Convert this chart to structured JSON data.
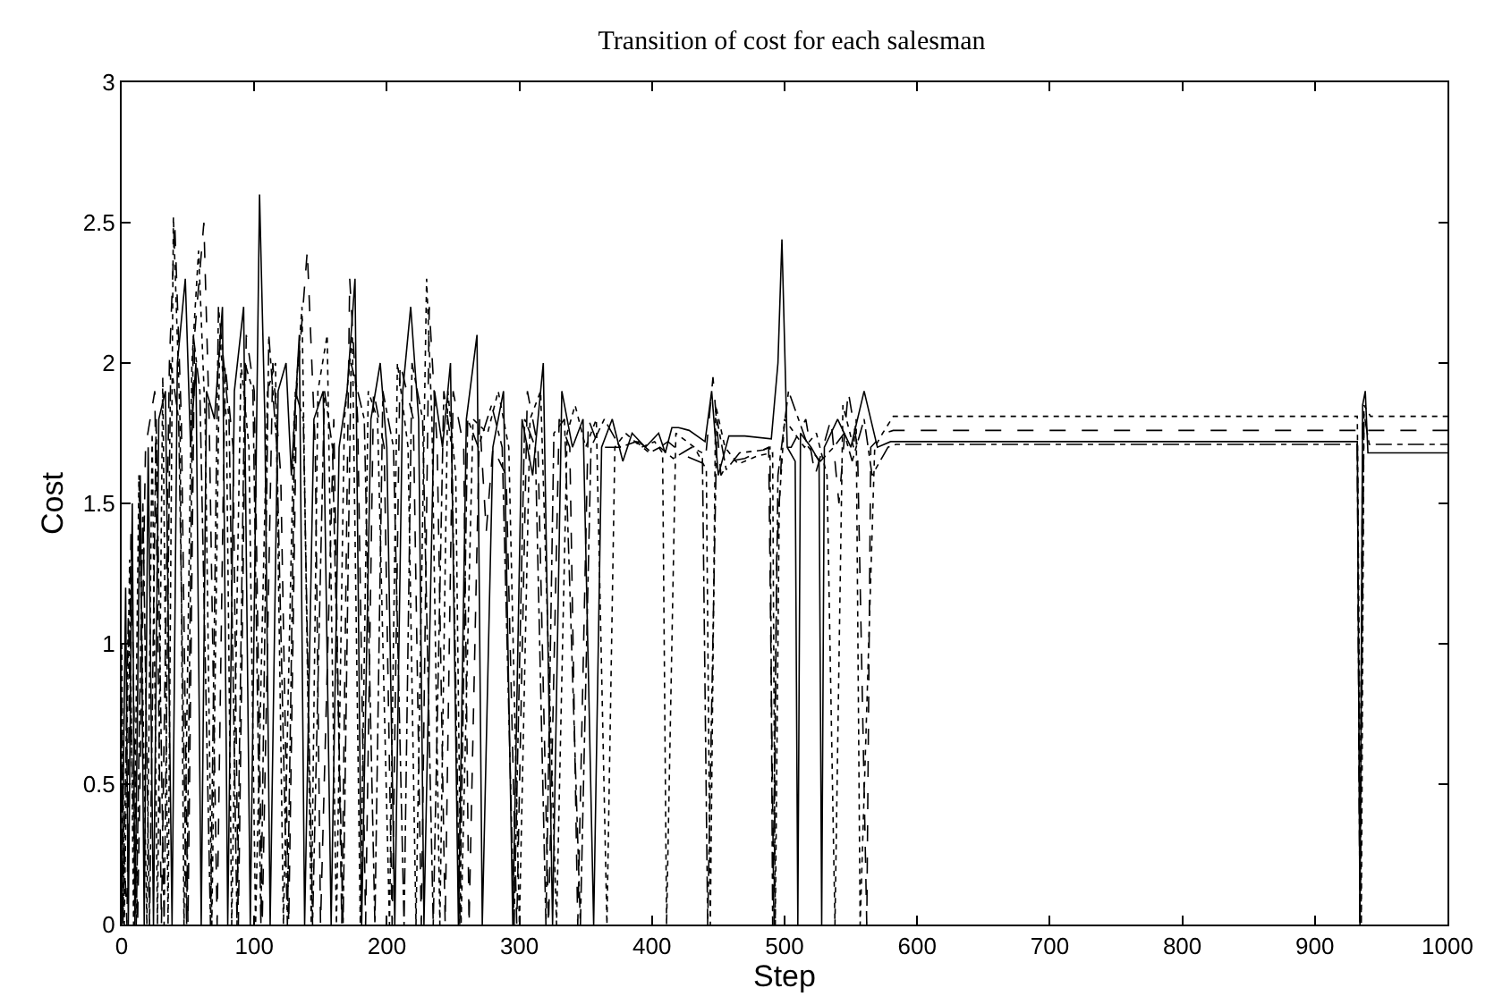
{
  "chart_data": {
    "type": "line",
    "title": "Transition of cost for each salesman",
    "xlabel": "Step",
    "ylabel": "Cost",
    "xlim": [
      0,
      1000
    ],
    "xticks": [
      0,
      100,
      200,
      300,
      400,
      500,
      600,
      700,
      800,
      900,
      1000
    ],
    "ylim": [
      0,
      3
    ],
    "yticks": [
      0,
      0.5,
      1,
      1.5,
      2,
      2.5,
      3
    ],
    "marker": "none",
    "series": [
      {
        "color": "#000000",
        "line_style": "solid",
        "x": [
          0,
          3,
          5,
          8,
          10,
          14,
          17,
          20,
          24,
          28,
          33,
          38,
          42,
          48,
          52,
          56,
          60,
          64,
          70,
          76,
          80,
          85,
          92,
          97,
          104,
          108,
          112,
          118,
          124,
          128,
          134,
          138,
          145,
          152,
          158,
          164,
          170,
          176,
          181,
          188,
          195,
          200,
          206,
          212,
          218,
          224,
          228,
          236,
          242,
          248,
          254,
          260,
          268,
          272,
          280,
          288,
          295,
          302,
          310,
          318,
          325,
          332,
          340,
          348,
          356,
          362,
          370,
          378,
          385,
          395,
          405,
          410,
          415,
          420,
          428,
          440,
          445,
          450,
          458,
          470,
          490,
          495,
          498,
          502,
          508,
          510,
          512,
          520,
          526,
          528,
          530,
          540,
          550,
          560,
          570,
          580,
          932,
          934,
          936,
          938,
          940,
          1000
        ],
        "values": [
          0,
          1.2,
          0,
          1.5,
          0,
          1.6,
          0,
          1.7,
          0,
          1.8,
          1.9,
          0,
          2.0,
          2.3,
          1.7,
          2.0,
          0,
          1.9,
          1.8,
          2.2,
          0,
          1.9,
          2.2,
          0,
          2.6,
          1.8,
          0,
          1.9,
          2.0,
          1.6,
          2.1,
          0,
          1.8,
          1.9,
          0,
          1.7,
          1.9,
          2.3,
          0,
          1.8,
          2.0,
          1.7,
          0,
          1.9,
          2.2,
          1.8,
          0,
          1.9,
          1.7,
          2.0,
          0,
          1.8,
          2.1,
          0,
          1.7,
          1.9,
          0,
          1.8,
          1.6,
          2.0,
          0,
          1.9,
          1.7,
          1.8,
          0,
          1.7,
          1.8,
          1.65,
          1.75,
          1.7,
          1.75,
          1.68,
          1.77,
          1.77,
          1.76,
          1.72,
          1.9,
          1.6,
          1.74,
          1.74,
          1.73,
          2.0,
          2.44,
          1.7,
          1.65,
          0,
          1.75,
          1.7,
          1.65,
          0,
          1.7,
          1.8,
          1.7,
          1.9,
          1.7,
          1.72,
          1.72,
          0,
          1.85,
          1.9,
          1.68,
          1.68
        ]
      },
      {
        "color": "#000000",
        "line_style": "dashed",
        "x": [
          0,
          4,
          7,
          12,
          18,
          25,
          30,
          36,
          40,
          45,
          50,
          55,
          62,
          66,
          72,
          78,
          84,
          88,
          94,
          100,
          106,
          114,
          120,
          126,
          132,
          140,
          146,
          150,
          160,
          166,
          172,
          178,
          184,
          190,
          198,
          204,
          210,
          220,
          226,
          232,
          238,
          244,
          250,
          258,
          262,
          270,
          275,
          280,
          290,
          298,
          306,
          314,
          322,
          330,
          338,
          344,
          352,
          360,
          375,
          390,
          400,
          412,
          425,
          440,
          446,
          452,
          458,
          470,
          488,
          492,
          494,
          498,
          505,
          516,
          523,
          535,
          541,
          548,
          555,
          562,
          565,
          575,
          582,
          932,
          934,
          936,
          940,
          1000
        ],
        "values": [
          0.5,
          0,
          1.4,
          0,
          1.7,
          1.9,
          0,
          2.0,
          2.5,
          1.8,
          0,
          2.1,
          2.5,
          1.8,
          0,
          2.0,
          1.7,
          0,
          2.1,
          1.9,
          0,
          2.0,
          1.6,
          0,
          1.9,
          2.4,
          1.7,
          0,
          1.8,
          0,
          2.3,
          1.8,
          0,
          1.9,
          1.7,
          0,
          2.0,
          1.8,
          0,
          2.2,
          1.7,
          0,
          1.9,
          1.7,
          0,
          1.8,
          1.4,
          1.7,
          1.6,
          0,
          1.9,
          1.7,
          0,
          1.8,
          1.7,
          0,
          1.8,
          1.7,
          1.7,
          1.72,
          1.68,
          1.72,
          1.67,
          1.64,
          1.95,
          1.6,
          1.65,
          1.66,
          1.7,
          0,
          1.3,
          1.7,
          1.7,
          1.8,
          1.6,
          1.8,
          1.5,
          1.9,
          1.7,
          0,
          1.7,
          1.75,
          1.76,
          1.76,
          0,
          1.8,
          1.76,
          1.76
        ]
      },
      {
        "color": "#000000",
        "line_style": "dotted",
        "x": [
          0,
          2,
          6,
          9,
          13,
          19,
          23,
          27,
          31,
          35,
          39,
          44,
          47,
          53,
          58,
          63,
          68,
          74,
          79,
          83,
          90,
          96,
          101,
          110,
          116,
          122,
          130,
          136,
          143,
          148,
          155,
          162,
          168,
          174,
          180,
          186,
          193,
          202,
          208,
          216,
          222,
          230,
          234,
          240,
          246,
          252,
          256,
          265,
          276,
          284,
          292,
          300,
          308,
          316,
          328,
          336,
          342,
          350,
          358,
          366,
          372,
          380,
          392,
          402,
          408,
          411,
          418,
          432,
          441,
          444,
          448,
          455,
          465,
          480,
          491,
          493,
          496,
          500,
          515,
          524,
          532,
          538,
          544,
          552,
          554,
          557,
          568,
          574,
          582,
          932,
          935,
          937,
          942,
          1000
        ],
        "values": [
          1.0,
          0,
          1.3,
          0,
          1.6,
          0,
          1.75,
          0,
          1.95,
          0,
          2.52,
          1.8,
          0,
          2.0,
          2.4,
          1.8,
          0,
          2.1,
          1.8,
          0,
          2.0,
          1.7,
          0,
          1.9,
          2.0,
          0,
          1.8,
          2.2,
          0,
          1.9,
          2.1,
          0,
          1.8,
          2.1,
          0,
          1.9,
          1.8,
          0,
          2.0,
          1.7,
          0,
          2.3,
          1.8,
          0,
          1.9,
          1.6,
          0,
          1.8,
          1.75,
          1.9,
          1.7,
          0,
          1.8,
          1.9,
          0,
          1.75,
          1.85,
          1.7,
          1.8,
          0,
          1.7,
          1.75,
          1.7,
          1.72,
          1.68,
          0,
          1.75,
          1.7,
          1.62,
          0,
          1.85,
          1.7,
          1.64,
          1.67,
          1.68,
          0,
          1.5,
          1.8,
          1.7,
          1.75,
          1.6,
          0,
          1.85,
          1.7,
          1.8,
          0,
          1.7,
          1.75,
          1.81,
          1.81,
          0,
          1.85,
          1.81,
          1.81
        ]
      },
      {
        "color": "#000000",
        "line_style": "dashdot",
        "x": [
          0,
          1,
          5,
          11,
          16,
          21,
          26,
          32,
          37,
          43,
          49,
          54,
          59,
          67,
          73,
          81,
          87,
          93,
          99,
          105,
          111,
          117,
          125,
          131,
          137,
          144,
          153,
          159,
          167,
          173,
          183,
          191,
          197,
          205,
          213,
          219,
          227,
          235,
          243,
          249,
          255,
          261,
          269,
          279,
          287,
          296,
          304,
          312,
          320,
          326,
          334,
          346,
          354,
          364,
          376,
          388,
          398,
          406,
          416,
          430,
          438,
          442,
          449,
          456,
          466,
          484,
          489,
          491,
          495,
          503,
          518,
          527,
          537,
          545,
          551,
          560,
          566,
          578,
          584,
          932,
          934,
          937,
          941,
          1000
        ],
        "values": [
          0.8,
          0,
          1.1,
          0,
          1.5,
          0,
          1.8,
          0,
          2.0,
          1.8,
          0,
          2.1,
          1.9,
          0,
          2.2,
          1.8,
          0,
          2.0,
          1.9,
          0,
          2.1,
          1.7,
          0,
          1.9,
          1.8,
          0,
          1.9,
          1.7,
          0,
          2.0,
          1.8,
          0,
          1.9,
          1.7,
          0,
          2.0,
          1.8,
          0,
          1.9,
          1.7,
          0,
          1.8,
          1.7,
          1.85,
          1.7,
          0,
          1.8,
          1.7,
          0,
          1.75,
          1.8,
          0,
          1.7,
          1.8,
          1.7,
          1.72,
          1.68,
          1.7,
          1.66,
          1.7,
          1.68,
          0,
          1.8,
          1.62,
          1.68,
          1.69,
          1.7,
          0,
          1.6,
          1.9,
          1.7,
          1.65,
          1.7,
          1.75,
          1.65,
          1.8,
          1.6,
          1.7,
          1.71,
          1.71,
          0,
          1.82,
          1.71,
          1.71
        ]
      }
    ]
  }
}
